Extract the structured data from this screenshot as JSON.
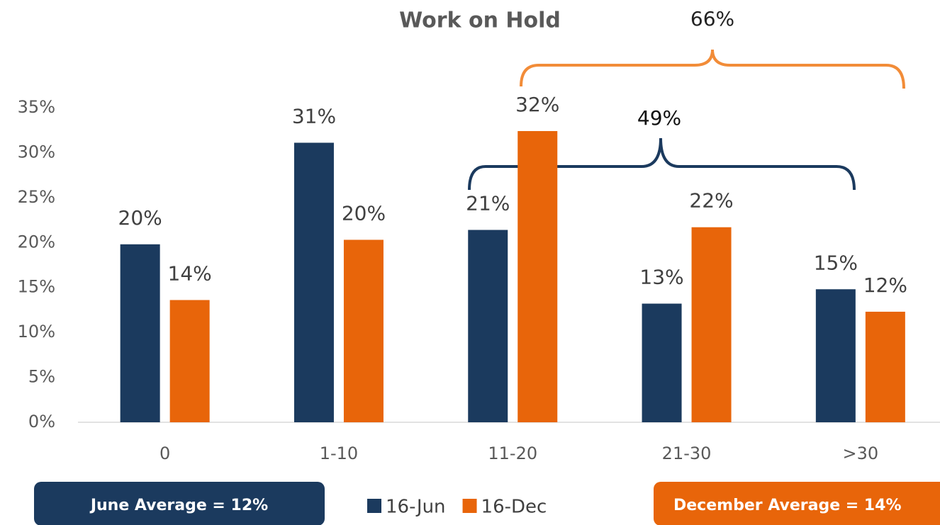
{
  "chart_data": {
    "type": "bar",
    "title": "Work on Hold",
    "categories": [
      "0",
      "1-10",
      "11-20",
      "21-30",
      ">30"
    ],
    "series": [
      {
        "name": "16-Jun",
        "color": "#1b3a5e",
        "values": [
          19.8,
          31.1,
          21.4,
          13.2,
          14.8
        ],
        "value_labels": [
          "20%",
          "31%",
          "21%",
          "13%",
          "15%"
        ]
      },
      {
        "name": "16-Dec",
        "color": "#e8650a",
        "values": [
          13.6,
          20.3,
          32.4,
          21.7,
          12.3
        ],
        "value_labels": [
          "14%",
          "20%",
          "32%",
          "22%",
          "12%"
        ]
      }
    ],
    "ylim": [
      0,
      35
    ],
    "yticks": [
      {
        "value": 0,
        "label": "0%"
      },
      {
        "value": 5,
        "label": "5%"
      },
      {
        "value": 10,
        "label": "10%"
      },
      {
        "value": 15,
        "label": "15%"
      },
      {
        "value": 20,
        "label": "20%"
      },
      {
        "value": 25,
        "label": "25%"
      },
      {
        "value": 30,
        "label": "30%"
      },
      {
        "value": 35,
        "label": "35%"
      }
    ],
    "grid": false,
    "legend": "bottom",
    "annotations": [
      "66%",
      "49%"
    ],
    "callouts": [
      "June Average = 12%",
      "December Average = 14%"
    ]
  }
}
